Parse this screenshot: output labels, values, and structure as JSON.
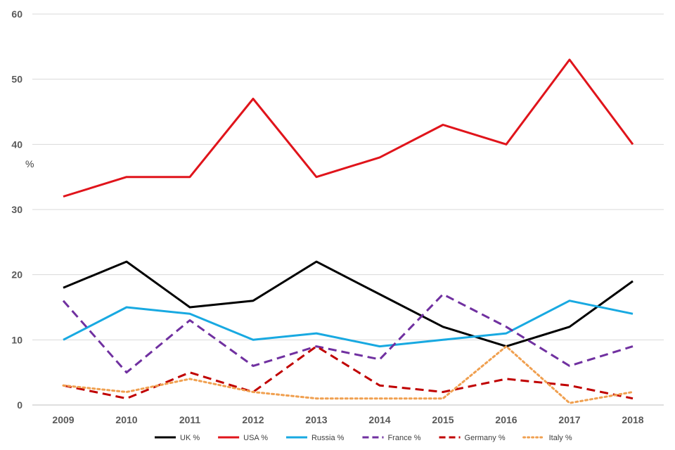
{
  "chart_data": {
    "type": "line",
    "title": "",
    "xlabel": "",
    "ylabel": "%",
    "ylim": [
      0,
      60
    ],
    "yticks": [
      0,
      10,
      20,
      30,
      40,
      50,
      60
    ],
    "grid": true,
    "legend_position": "bottom",
    "categories": [
      "2009",
      "2010",
      "2011",
      "2012",
      "2013",
      "2014",
      "2015",
      "2016",
      "2017",
      "2018"
    ],
    "series": [
      {
        "name": "UK %",
        "color": "#000000",
        "dash": "solid",
        "values": [
          18,
          22,
          15,
          16,
          22,
          17,
          12,
          9,
          12,
          19
        ]
      },
      {
        "name": "USA %",
        "color": "#e0141b",
        "dash": "solid",
        "values": [
          32,
          35,
          35,
          47,
          35,
          38,
          43,
          40,
          53,
          40
        ]
      },
      {
        "name": "Russia %",
        "color": "#18a9e1",
        "dash": "solid",
        "values": [
          10,
          15,
          14,
          10,
          11,
          9,
          10,
          11,
          16,
          14
        ]
      },
      {
        "name": "France %",
        "color": "#7030a0",
        "dash": "dashed",
        "values": [
          16,
          5,
          13,
          6,
          9,
          7,
          17,
          12,
          6,
          9
        ]
      },
      {
        "name": "Germany %",
        "color": "#c00000",
        "dash": "dashed",
        "values": [
          3,
          1,
          5,
          2,
          9,
          3,
          2,
          4,
          3,
          1
        ]
      },
      {
        "name": "Italy %",
        "color": "#f0a050",
        "dash": "dotted",
        "values": [
          3,
          2,
          4,
          2,
          1,
          1,
          1,
          9,
          0.3,
          2
        ]
      }
    ]
  }
}
